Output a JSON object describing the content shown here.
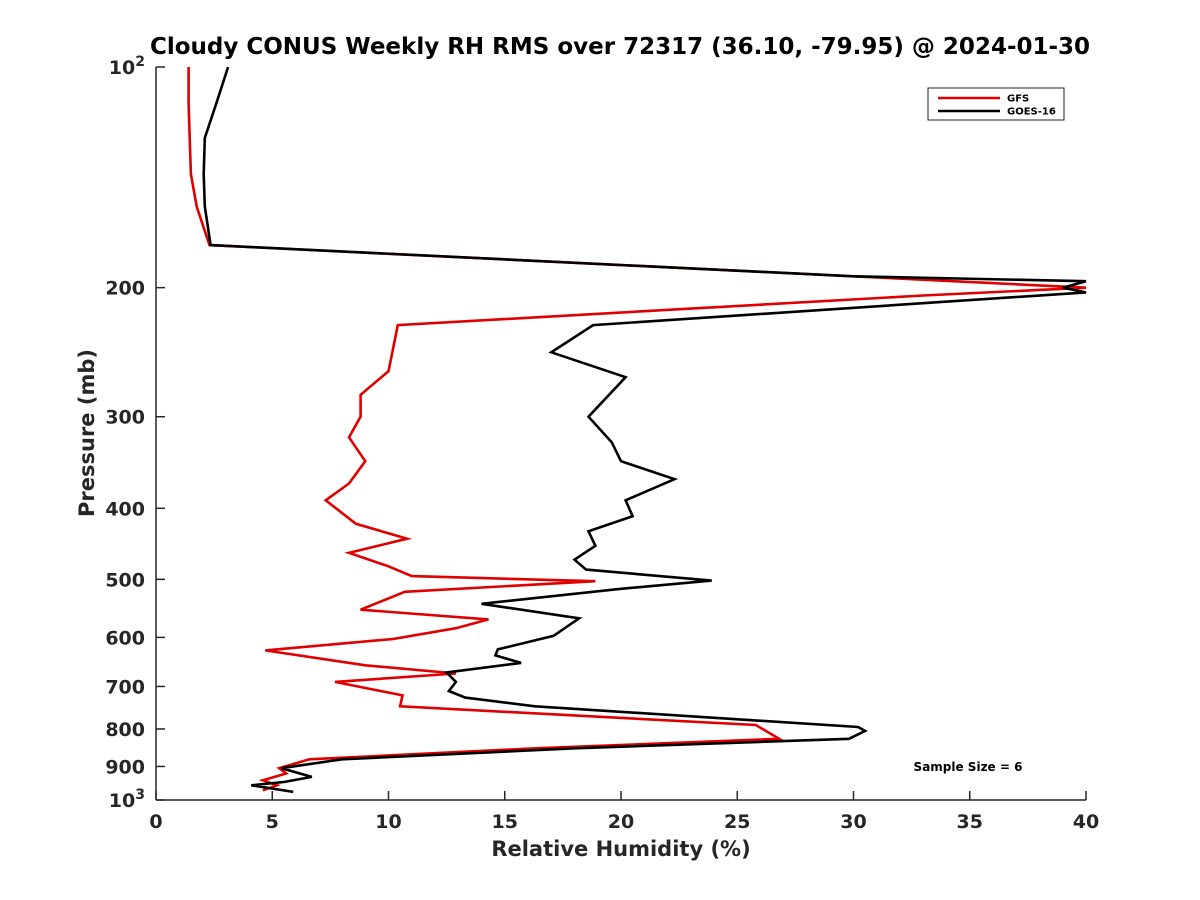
{
  "chart_data": {
    "type": "line",
    "title": "Cloudy CONUS Weekly RH RMS over 72317 (36.10, -79.95) @ 2024-01-30",
    "xlabel": "Relative Humidity (%)",
    "ylabel": "Pressure (mb)",
    "xlim": [
      0,
      40
    ],
    "ylim": [
      1000,
      100
    ],
    "yscale": "log",
    "y_reversed": true,
    "grid": false,
    "legend_position": "top-right",
    "x_ticks": [
      0,
      5,
      10,
      15,
      20,
      25,
      30,
      35,
      40
    ],
    "y_ticks": [
      {
        "value": 100,
        "base": "10",
        "exp": "2",
        "label": ""
      },
      {
        "value": 200,
        "label": "200"
      },
      {
        "value": 300,
        "label": "300"
      },
      {
        "value": 400,
        "label": "400"
      },
      {
        "value": 500,
        "label": "500"
      },
      {
        "value": 600,
        "label": "600"
      },
      {
        "value": 700,
        "label": "700"
      },
      {
        "value": 800,
        "label": "800"
      },
      {
        "value": 900,
        "label": "900"
      },
      {
        "value": 1000,
        "base": "10",
        "exp": "3",
        "label": ""
      }
    ],
    "series": [
      {
        "name": "GFS",
        "color": "#e00000",
        "points": [
          [
            1.4,
            100
          ],
          [
            1.4,
            112
          ],
          [
            1.45,
            125
          ],
          [
            1.5,
            140
          ],
          [
            1.75,
            155
          ],
          [
            2.3,
            175
          ],
          [
            30,
            193
          ],
          [
            40,
            200
          ],
          [
            33,
            205
          ],
          [
            10.4,
            225
          ],
          [
            10,
            260
          ],
          [
            8.8,
            280
          ],
          [
            8.8,
            300
          ],
          [
            8.3,
            320
          ],
          [
            9,
            345
          ],
          [
            8.3,
            370
          ],
          [
            7.3,
            390
          ],
          [
            8.6,
            420
          ],
          [
            10.8,
            440
          ],
          [
            8.3,
            460
          ],
          [
            10,
            480
          ],
          [
            11,
            495
          ],
          [
            18.9,
            503
          ],
          [
            10.7,
            520
          ],
          [
            8.8,
            550
          ],
          [
            14.3,
            567
          ],
          [
            12.9,
            583
          ],
          [
            10.2,
            603
          ],
          [
            4.7,
            625
          ],
          [
            9,
            655
          ],
          [
            12.9,
            672
          ],
          [
            7.7,
            690
          ],
          [
            10.6,
            720
          ],
          [
            10.5,
            745
          ],
          [
            25.8,
            790
          ],
          [
            26.8,
            825
          ],
          [
            16.3,
            850
          ],
          [
            6.6,
            880
          ],
          [
            5.3,
            905
          ],
          [
            5.6,
            920
          ],
          [
            4.6,
            940
          ],
          [
            5.2,
            955
          ],
          [
            4.6,
            970
          ]
        ]
      },
      {
        "name": "GOES-16",
        "color": "#000000",
        "points": [
          [
            3.1,
            100
          ],
          [
            2.6,
            112
          ],
          [
            2.1,
            125
          ],
          [
            2.05,
            140
          ],
          [
            2.1,
            155
          ],
          [
            2.35,
            175
          ],
          [
            30,
            193
          ],
          [
            40,
            196
          ],
          [
            39,
            200
          ],
          [
            40,
            203
          ],
          [
            18.8,
            225
          ],
          [
            17,
            245
          ],
          [
            20.2,
            265
          ],
          [
            18.6,
            300
          ],
          [
            19.6,
            325
          ],
          [
            20,
            345
          ],
          [
            22.3,
            365
          ],
          [
            20.2,
            390
          ],
          [
            20.5,
            410
          ],
          [
            18.6,
            430
          ],
          [
            18.9,
            450
          ],
          [
            18,
            470
          ],
          [
            18.5,
            485
          ],
          [
            23.9,
            502
          ],
          [
            20,
            515
          ],
          [
            14,
            540
          ],
          [
            18.2,
            565
          ],
          [
            17.1,
            597
          ],
          [
            14.7,
            623
          ],
          [
            14.6,
            635
          ],
          [
            15.7,
            650
          ],
          [
            12.5,
            670
          ],
          [
            12.9,
            690
          ],
          [
            12.6,
            710
          ],
          [
            13.3,
            725
          ],
          [
            16.3,
            745
          ],
          [
            30.2,
            795
          ],
          [
            30.5,
            805
          ],
          [
            29.8,
            825
          ],
          [
            18,
            850
          ],
          [
            8,
            880
          ],
          [
            5.4,
            905
          ],
          [
            6.7,
            930
          ],
          [
            5.5,
            945
          ],
          [
            4.1,
            955
          ],
          [
            5.9,
            975
          ]
        ]
      }
    ],
    "annotation": "Sample Size = 6"
  }
}
